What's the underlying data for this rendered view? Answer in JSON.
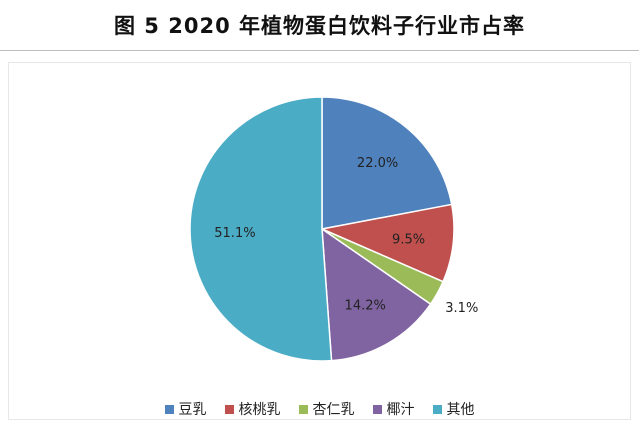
{
  "page": {
    "title": "图 5  2020 年植物蛋白饮料子行业市占率"
  },
  "chart_data": {
    "type": "pie",
    "title": "",
    "start_angle_deg": 0,
    "direction": "clockwise",
    "legend_position": "bottom",
    "slices": [
      {
        "name": "豆乳",
        "value": 22.0,
        "label": "22.0%",
        "color": "#4f81bd"
      },
      {
        "name": "核桃乳",
        "value": 9.5,
        "label": "9.5%",
        "color": "#c0504d"
      },
      {
        "name": "杏仁乳",
        "value": 3.1,
        "label": "3.1%",
        "color": "#9bbb59"
      },
      {
        "name": "椰汁",
        "value": 14.2,
        "label": "14.2%",
        "color": "#8064a2"
      },
      {
        "name": "其他",
        "value": 51.1,
        "label": "51.1%",
        "color": "#4bacc6"
      }
    ]
  }
}
